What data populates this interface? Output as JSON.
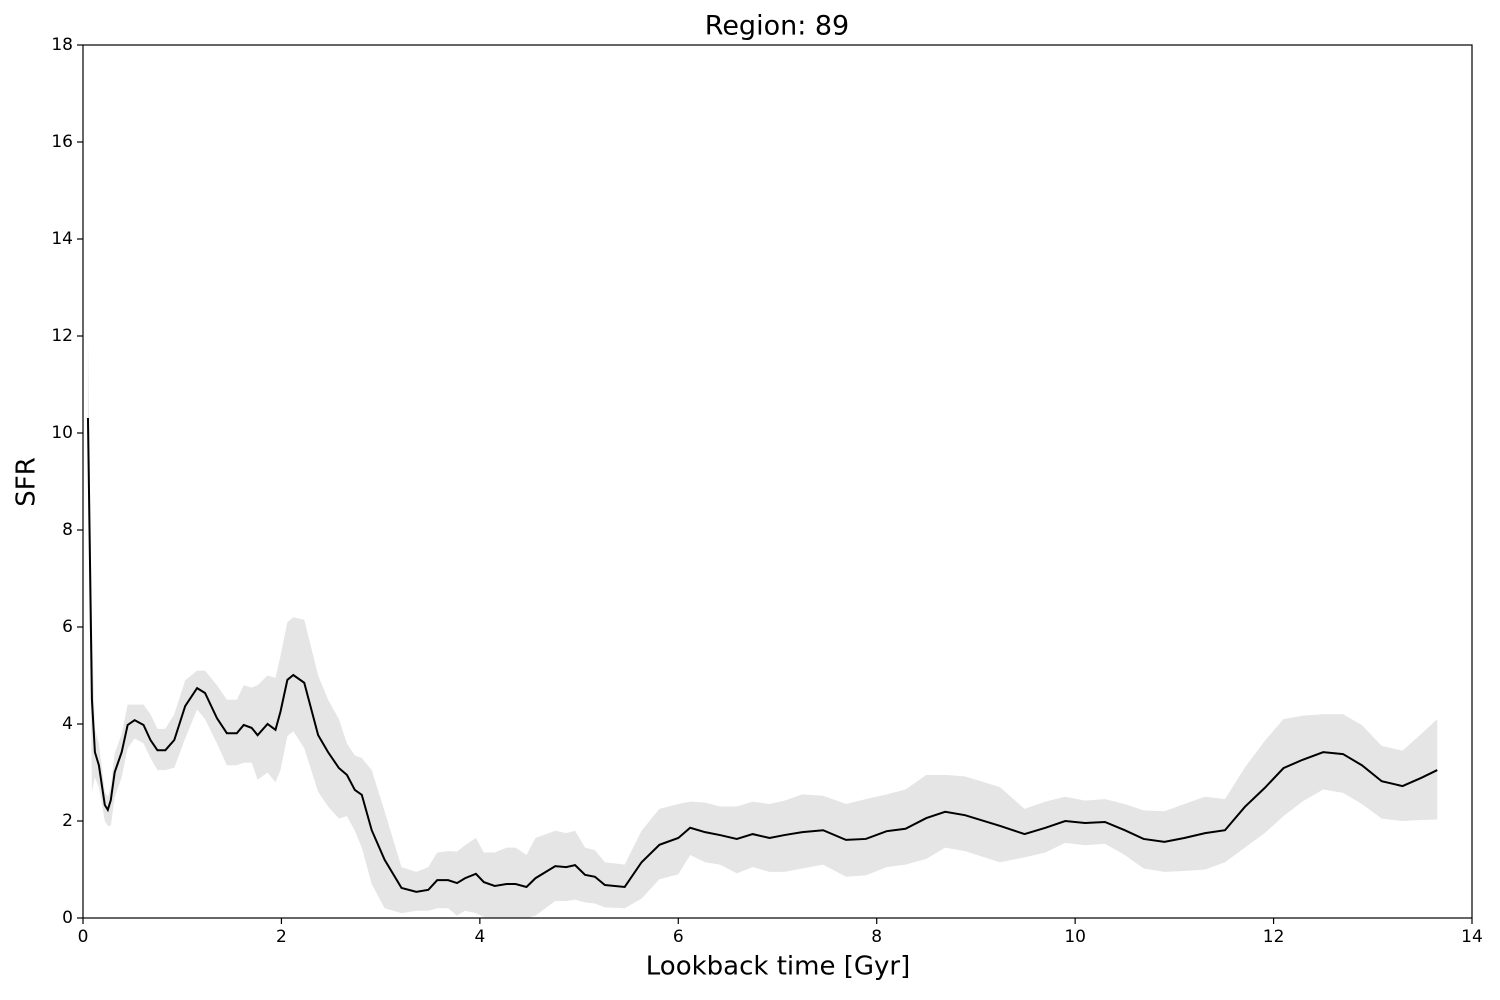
{
  "chart_data": {
    "type": "line",
    "title": "Region: 89",
    "xlabel": "Lookback time [Gyr]",
    "ylabel": "SFR",
    "xlim": [
      0,
      14
    ],
    "ylim": [
      0,
      18
    ],
    "xticks": [
      0,
      2,
      4,
      6,
      8,
      10,
      12,
      14
    ],
    "yticks": [
      0,
      2,
      4,
      6,
      8,
      10,
      12,
      14,
      16,
      18
    ],
    "x": [
      0.05,
      0.09,
      0.12,
      0.16,
      0.22,
      0.25,
      0.28,
      0.32,
      0.39,
      0.45,
      0.52,
      0.61,
      0.68,
      0.75,
      0.83,
      0.92,
      1.03,
      1.15,
      1.23,
      1.35,
      1.45,
      1.55,
      1.62,
      1.7,
      1.76,
      1.86,
      1.94,
      1.99,
      2.06,
      2.12,
      2.23,
      2.37,
      2.47,
      2.58,
      2.66,
      2.74,
      2.81,
      2.91,
      3.04,
      3.21,
      3.36,
      3.48,
      3.57,
      3.68,
      3.77,
      3.85,
      3.96,
      4.04,
      4.15,
      4.27,
      4.36,
      4.47,
      4.56,
      4.76,
      4.87,
      4.96,
      5.06,
      5.16,
      5.26,
      5.46,
      5.63,
      5.81,
      6.0,
      6.12,
      6.27,
      6.42,
      6.59,
      6.75,
      6.92,
      7.07,
      7.25,
      7.46,
      7.69,
      7.89,
      8.1,
      8.29,
      8.5,
      8.69,
      8.89,
      9.24,
      9.49,
      9.7,
      9.9,
      10.1,
      10.3,
      10.5,
      10.69,
      10.9,
      11.1,
      11.31,
      11.51,
      11.71,
      11.91,
      12.1,
      12.29,
      12.5,
      12.7,
      12.89,
      13.09,
      13.3,
      13.49,
      13.65
    ],
    "series": [
      {
        "color": "#000000",
        "values": [
          10.31,
          4.5,
          3.42,
          3.15,
          2.33,
          2.23,
          2.43,
          3.01,
          3.42,
          3.98,
          4.08,
          3.98,
          3.67,
          3.46,
          3.46,
          3.67,
          4.37,
          4.74,
          4.64,
          4.12,
          3.81,
          3.81,
          3.98,
          3.92,
          3.77,
          4.0,
          3.88,
          4.25,
          4.91,
          5.01,
          4.85,
          3.77,
          3.42,
          3.09,
          2.95,
          2.64,
          2.54,
          1.81,
          1.2,
          0.62,
          0.54,
          0.58,
          0.78,
          0.78,
          0.72,
          0.82,
          0.91,
          0.74,
          0.66,
          0.7,
          0.7,
          0.64,
          0.82,
          1.07,
          1.05,
          1.09,
          0.89,
          0.85,
          0.68,
          0.64,
          1.15,
          1.51,
          1.65,
          1.86,
          1.77,
          1.71,
          1.63,
          1.73,
          1.65,
          1.71,
          1.77,
          1.81,
          1.61,
          1.63,
          1.79,
          1.84,
          2.06,
          2.19,
          2.12,
          1.9,
          1.73,
          1.86,
          2.0,
          1.96,
          1.98,
          1.81,
          1.63,
          1.57,
          1.65,
          1.75,
          1.81,
          2.29,
          2.68,
          3.09,
          3.26,
          3.42,
          3.38,
          3.15,
          2.82,
          2.72,
          2.89,
          3.05
        ]
      }
    ],
    "band": {
      "color": "#e5e5e5",
      "upper": [
        12.0,
        6.0,
        3.9,
        3.6,
        2.6,
        2.5,
        2.7,
        3.4,
        3.8,
        4.4,
        4.4,
        4.4,
        4.2,
        3.9,
        3.9,
        4.2,
        4.9,
        5.1,
        5.1,
        4.8,
        4.5,
        4.5,
        4.8,
        4.75,
        4.8,
        5.0,
        4.95,
        5.4,
        6.1,
        6.2,
        6.15,
        5.0,
        4.5,
        4.1,
        3.6,
        3.35,
        3.3,
        3.05,
        2.2,
        1.05,
        0.95,
        1.05,
        1.35,
        1.38,
        1.37,
        1.5,
        1.65,
        1.35,
        1.35,
        1.45,
        1.45,
        1.3,
        1.65,
        1.8,
        1.75,
        1.8,
        1.45,
        1.4,
        1.15,
        1.1,
        1.8,
        2.25,
        2.35,
        2.4,
        2.38,
        2.3,
        2.3,
        2.4,
        2.35,
        2.42,
        2.55,
        2.52,
        2.35,
        2.45,
        2.55,
        2.65,
        2.95,
        2.95,
        2.92,
        2.7,
        2.25,
        2.4,
        2.5,
        2.42,
        2.45,
        2.35,
        2.22,
        2.2,
        2.35,
        2.5,
        2.45,
        3.1,
        3.65,
        4.1,
        4.17,
        4.2,
        4.2,
        3.98,
        3.55,
        3.45,
        3.8,
        4.1
      ],
      "lower": [
        8.7,
        2.6,
        2.9,
        2.7,
        2.0,
        1.9,
        1.9,
        2.5,
        2.9,
        3.5,
        3.7,
        3.6,
        3.3,
        3.05,
        3.05,
        3.1,
        3.7,
        4.3,
        4.1,
        3.6,
        3.15,
        3.15,
        3.2,
        3.2,
        2.85,
        3.0,
        2.8,
        3.05,
        3.75,
        3.85,
        3.5,
        2.6,
        2.3,
        2.05,
        2.1,
        1.8,
        1.45,
        0.7,
        0.2,
        0.1,
        0.15,
        0.15,
        0.2,
        0.2,
        0.05,
        0.15,
        0.1,
        0.02,
        0,
        0,
        0,
        0,
        0.05,
        0.35,
        0.35,
        0.38,
        0.32,
        0.3,
        0.22,
        0.2,
        0.4,
        0.8,
        0.9,
        1.3,
        1.15,
        1.1,
        0.92,
        1.05,
        0.95,
        0.95,
        1.02,
        1.1,
        0.85,
        0.88,
        1.05,
        1.1,
        1.22,
        1.45,
        1.38,
        1.15,
        1.25,
        1.35,
        1.55,
        1.5,
        1.53,
        1.3,
        1.02,
        0.95,
        0.97,
        1.0,
        1.15,
        1.45,
        1.75,
        2.1,
        2.4,
        2.65,
        2.58,
        2.35,
        2.05,
        2.0,
        2.02,
        2.03
      ]
    }
  }
}
